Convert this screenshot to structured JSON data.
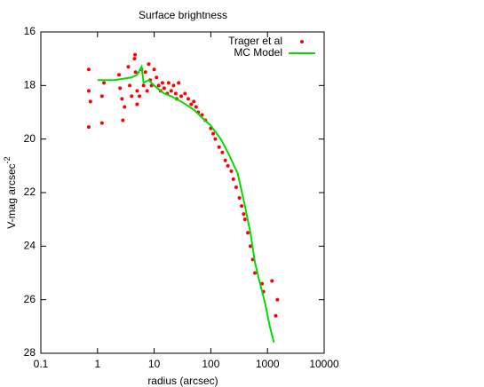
{
  "chart_data": {
    "type": "scatter",
    "title": "Surface brightness",
    "xlabel": "radius (arcsec)",
    "ylabel": "V-mag arcsec",
    "ylabel_superscript": "-2",
    "xscale": "log",
    "xlim": [
      0.1,
      10000
    ],
    "xticks": [
      0.1,
      1,
      10,
      100,
      1000,
      10000
    ],
    "ylim": [
      28,
      16
    ],
    "yticks": [
      16,
      18,
      20,
      22,
      24,
      26,
      28
    ],
    "grid": false,
    "legend": "upper right",
    "series": [
      {
        "name": "Trager et al",
        "color": "#ff0000",
        "style": "points",
        "x": [
          0.7,
          0.7,
          0.75,
          0.7,
          1.2,
          1.2,
          1.3,
          2.4,
          2.5,
          2.7,
          2.8,
          3,
          3.5,
          3.7,
          4,
          4.5,
          4.6,
          4.7,
          5,
          5,
          5.5,
          6,
          6.5,
          7,
          7.5,
          8,
          8.5,
          9,
          10,
          11,
          12,
          13,
          14,
          15,
          17,
          18,
          20,
          22,
          24,
          25,
          27,
          30,
          35,
          40,
          45,
          50,
          55,
          60,
          70,
          80,
          100,
          110,
          120,
          140,
          160,
          180,
          200,
          230,
          250,
          280,
          320,
          350,
          380,
          400,
          450,
          500,
          550,
          600,
          800,
          850,
          1200,
          1400,
          1500
        ],
        "values": [
          17.4,
          18.2,
          18.6,
          19.55,
          18.4,
          19.4,
          17.9,
          17.6,
          18.1,
          18.5,
          19.3,
          18.8,
          17.3,
          18.0,
          18.4,
          17.0,
          16.85,
          17.5,
          18.2,
          18.7,
          18.4,
          17.4,
          18.0,
          17.5,
          18.2,
          17.2,
          17.8,
          18.0,
          17.4,
          17.7,
          18.0,
          18.2,
          17.9,
          18.1,
          18.3,
          17.9,
          18.2,
          18.0,
          18.3,
          18.5,
          17.9,
          18.4,
          18.3,
          18.5,
          18.7,
          18.6,
          18.8,
          19.0,
          19.1,
          19.3,
          19.6,
          19.8,
          20.0,
          20.3,
          20.5,
          20.8,
          21.0,
          21.2,
          21.5,
          21.8,
          22.2,
          22.5,
          22.8,
          23.0,
          23.5,
          24.0,
          24.5,
          25.0,
          25.4,
          25.7,
          25.3,
          26.6,
          26.0
        ]
      },
      {
        "name": "MC Model",
        "color": "#00dd00",
        "style": "line",
        "x": [
          1,
          2,
          4,
          5,
          6,
          6.5,
          8,
          10,
          15,
          20,
          30,
          50,
          70,
          100,
          150,
          200,
          300,
          400,
          500,
          600,
          700,
          900,
          1100,
          1300
        ],
        "values": [
          17.8,
          17.8,
          17.7,
          17.6,
          17.3,
          17.9,
          17.8,
          18.0,
          18.3,
          18.4,
          18.6,
          18.9,
          19.2,
          19.5,
          20.0,
          20.5,
          21.3,
          22.5,
          23.5,
          24.6,
          25.2,
          26.1,
          27.0,
          27.6
        ]
      }
    ]
  }
}
